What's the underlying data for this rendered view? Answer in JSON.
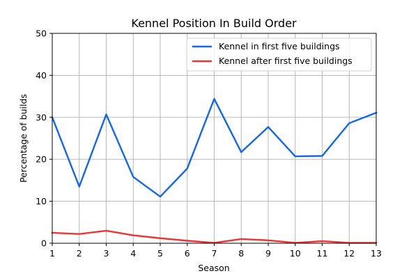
{
  "chart_data": {
    "type": "line",
    "title": "Kennel Position In Build Order",
    "xlabel": "Season",
    "ylabel": "Percentage of builds",
    "x": [
      1,
      2,
      3,
      4,
      5,
      6,
      7,
      8,
      9,
      10,
      11,
      12,
      13
    ],
    "xlim": [
      1,
      13
    ],
    "ylim": [
      0,
      50
    ],
    "x_ticks": [
      "1",
      "2",
      "3",
      "4",
      "5",
      "6",
      "7",
      "8",
      "9",
      "10",
      "11",
      "12",
      "13"
    ],
    "y_ticks": [
      "0",
      "10",
      "20",
      "30",
      "40",
      "50"
    ],
    "grid": true,
    "legend_position": "top-right",
    "series": [
      {
        "name": "Kennel in first five buildings",
        "color": "#1166ee",
        "values": [
          30.0,
          13.5,
          30.7,
          15.8,
          11.1,
          17.8,
          34.4,
          21.7,
          27.7,
          20.7,
          20.8,
          28.6,
          31.1
        ]
      },
      {
        "name": "Kennel after first five buildings",
        "color": "#ee3333",
        "values": [
          2.5,
          2.2,
          3.0,
          1.9,
          1.2,
          0.6,
          0.1,
          1.0,
          0.7,
          0.1,
          0.5,
          0.1,
          0.1
        ]
      }
    ]
  }
}
